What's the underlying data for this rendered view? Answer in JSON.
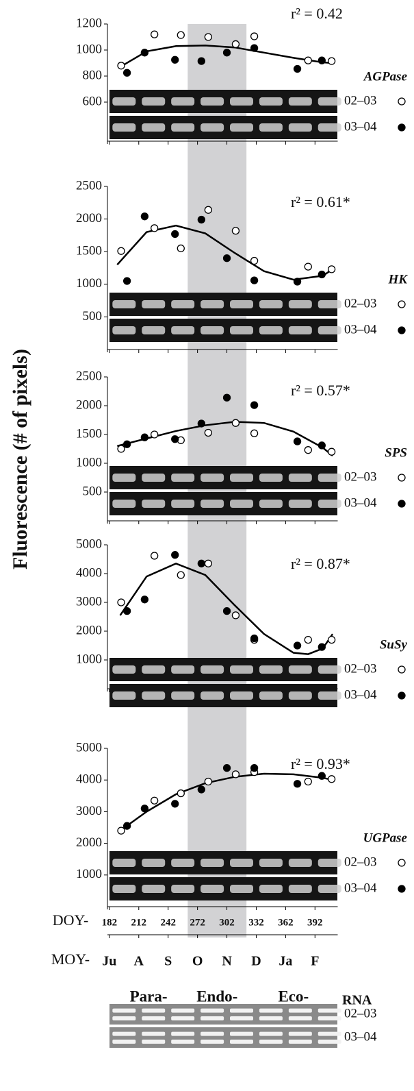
{
  "y_label": "Fluorescence (# of pixels)",
  "x_axis": {
    "doy_label": "DOY-",
    "xlim": [
      180,
      418
    ],
    "xticks": [
      182,
      212,
      242,
      272,
      302,
      332,
      362,
      392
    ],
    "moy_label": "MOY-",
    "months": [
      "Ju",
      "A",
      "S",
      "O",
      "N",
      "D",
      "Ja",
      "F"
    ],
    "shade": [
      262,
      322
    ],
    "phases": [
      "Para-",
      "Endo-",
      "Eco-"
    ]
  },
  "rna": {
    "label": "RNA",
    "rows": [
      "02–03",
      "03–04"
    ]
  },
  "chart_data": [
    {
      "type": "scatter",
      "gene": "AGPase",
      "annotation": "r² = 0.42",
      "ylim": [
        300,
        1200
      ],
      "yticks": [
        600,
        800,
        1000,
        1200
      ],
      "series": [
        {
          "name": "02–03",
          "marker": "open",
          "color": "#000000",
          "x": [
            194,
            228,
            255,
            283,
            311,
            330,
            385,
            409
          ],
          "values": [
            880,
            1120,
            1115,
            1100,
            1045,
            1105,
            920,
            915
          ]
        },
        {
          "name": "03–04",
          "marker": "filled",
          "color": "#000000",
          "x": [
            200,
            218,
            249,
            276,
            302,
            330,
            374,
            399
          ],
          "values": [
            825,
            980,
            925,
            915,
            980,
            1015,
            855,
            920
          ]
        }
      ],
      "fit": {
        "x": [
          193,
          220,
          250,
          280,
          310,
          340,
          370,
          400,
          410
        ],
        "values": [
          870,
          990,
          1030,
          1035,
          1020,
          980,
          940,
          905,
          900
        ]
      }
    },
    {
      "type": "scatter",
      "gene": "HK",
      "annotation": "r² = 0.61*",
      "ylim": [
        0,
        2500
      ],
      "yticks": [
        500,
        1000,
        1500,
        2000,
        2500
      ],
      "series": [
        {
          "name": "02–03",
          "marker": "open",
          "color": "#000000",
          "x": [
            194,
            228,
            255,
            283,
            311,
            330,
            385,
            409
          ],
          "values": [
            1510,
            1860,
            1550,
            2140,
            1820,
            1360,
            1270,
            1230
          ]
        },
        {
          "name": "03–04",
          "marker": "filled",
          "color": "#000000",
          "x": [
            200,
            218,
            249,
            276,
            302,
            330,
            374,
            399
          ],
          "values": [
            1050,
            2040,
            1770,
            1990,
            1400,
            1060,
            1040,
            1150
          ]
        }
      ],
      "fit": {
        "x": [
          190,
          220,
          250,
          280,
          310,
          340,
          370,
          400,
          410
        ],
        "values": [
          1300,
          1800,
          1900,
          1780,
          1480,
          1200,
          1070,
          1130,
          1230
        ]
      }
    },
    {
      "type": "scatter",
      "gene": "SPS",
      "annotation": "r² = 0.57*",
      "ylim": [
        0,
        2500
      ],
      "yticks": [
        500,
        1000,
        1500,
        2000,
        2500
      ],
      "series": [
        {
          "name": "02–03",
          "marker": "open",
          "color": "#000000",
          "x": [
            194,
            228,
            255,
            283,
            311,
            330,
            385,
            409
          ],
          "values": [
            1250,
            1500,
            1400,
            1530,
            1700,
            1520,
            1230,
            1200
          ]
        },
        {
          "name": "03–04",
          "marker": "filled",
          "color": "#000000",
          "x": [
            200,
            218,
            249,
            276,
            302,
            330,
            374,
            399
          ],
          "values": [
            1330,
            1450,
            1420,
            1690,
            2140,
            2010,
            1380,
            1310
          ]
        }
      ],
      "fit": {
        "x": [
          190,
          220,
          250,
          280,
          310,
          340,
          370,
          400,
          410
        ],
        "values": [
          1300,
          1430,
          1560,
          1660,
          1720,
          1700,
          1550,
          1270,
          1130
        ]
      }
    },
    {
      "type": "scatter",
      "gene": "SuSy",
      "annotation": "r² = 0.87*",
      "ylim": [
        0,
        5000
      ],
      "yticks": [
        1000,
        2000,
        3000,
        4000,
        5000
      ],
      "series": [
        {
          "name": "02–03",
          "marker": "open",
          "color": "#000000",
          "x": [
            194,
            228,
            255,
            283,
            311,
            330,
            385,
            409
          ],
          "values": [
            3000,
            4620,
            3950,
            4350,
            2550,
            1700,
            1700,
            1700
          ]
        },
        {
          "name": "03–04",
          "marker": "filled",
          "color": "#000000",
          "x": [
            200,
            218,
            249,
            276,
            302,
            330,
            374,
            399
          ],
          "values": [
            2700,
            3100,
            4650,
            4350,
            2700,
            1750,
            1500,
            1450
          ]
        }
      ],
      "fit": {
        "x": [
          193,
          220,
          250,
          280,
          310,
          340,
          370,
          385,
          400,
          410
        ],
        "values": [
          2550,
          3900,
          4350,
          3950,
          2900,
          1900,
          1250,
          1200,
          1400,
          1900
        ]
      }
    },
    {
      "type": "scatter",
      "gene": "UGPase",
      "annotation": "r² = 0.93*",
      "ylim": [
        0,
        5000
      ],
      "yticks": [
        1000,
        2000,
        3000,
        4000,
        5000
      ],
      "series": [
        {
          "name": "02–03",
          "marker": "open",
          "color": "#000000",
          "x": [
            194,
            228,
            255,
            283,
            311,
            330,
            385,
            409
          ],
          "values": [
            2400,
            3350,
            3580,
            3950,
            4180,
            4250,
            3950,
            4030
          ]
        },
        {
          "name": "03–04",
          "marker": "filled",
          "color": "#000000",
          "x": [
            200,
            218,
            249,
            276,
            302,
            330,
            374,
            399
          ],
          "values": [
            2550,
            3100,
            3250,
            3700,
            4380,
            4380,
            3880,
            4130
          ]
        }
      ],
      "fit": {
        "x": [
          193,
          220,
          250,
          280,
          310,
          340,
          370,
          400,
          410
        ],
        "values": [
          2400,
          3000,
          3550,
          3900,
          4100,
          4200,
          4180,
          4070,
          4000
        ]
      }
    }
  ]
}
